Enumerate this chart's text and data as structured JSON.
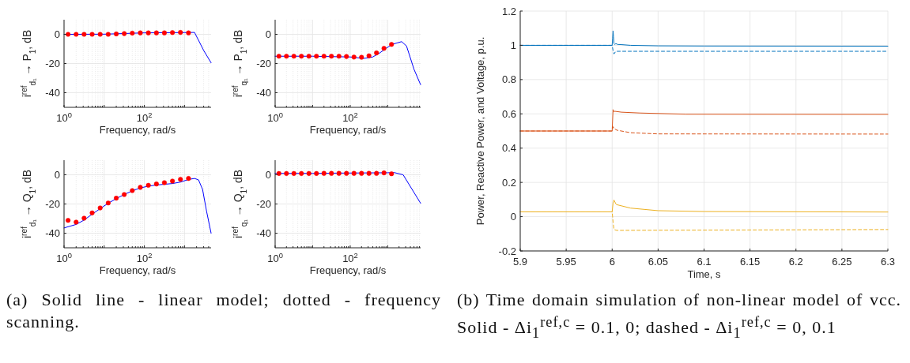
{
  "chart_data": [
    {
      "type": "line",
      "ylabel": "i$^{ref}$$_{d₁}$ → P$_{1}$, dB",
      "xlabel": "Frequency, rad/s",
      "log": "x",
      "grid": true,
      "xlim": [
        1,
        4600
      ],
      "ylim": [
        -50,
        10
      ],
      "xticks": [
        {
          "value": 1,
          "label": "10$^{0}$"
        },
        {
          "value": 10,
          "label": null
        },
        {
          "value": 100,
          "label": "10$^{2}$"
        },
        {
          "value": 1000,
          "label": null
        }
      ],
      "yticks": [
        -40,
        -20,
        0
      ],
      "annotations": [
        "(a) Solid line - linear model; dotted - frequency scanning."
      ],
      "series": [
        {
          "color": "#0000ff",
          "x": [
            1,
            10,
            100,
            1000,
            1780,
            3000,
            4600
          ],
          "values": [
            0,
            0.1,
            1,
            1.2,
            1.3,
            -11,
            -19.5
          ]
        },
        {
          "type": "scatter",
          "color": "#ff0000",
          "marker": "circle",
          "x": [
            1.26,
            2,
            3.16,
            5.01,
            7.94,
            12.6,
            20,
            31.6,
            50.1,
            79.4,
            126,
            200,
            316,
            501,
            794,
            1259
          ],
          "values": [
            0,
            0,
            0,
            0,
            0,
            0,
            0.3,
            0.5,
            0.8,
            1,
            1,
            1,
            1,
            1.2,
            1.3,
            1
          ]
        }
      ]
    },
    {
      "type": "line",
      "ylabel": "i$^{ref}$$_{q₁}$ → P$_{1}$, dB",
      "xlabel": "Frequency, rad/s",
      "log": "x",
      "grid": true,
      "xlim": [
        1,
        7500
      ],
      "ylim": [
        -50,
        10
      ],
      "xticks": [
        {
          "value": 1,
          "label": "10$^{0}$"
        },
        {
          "value": 10,
          "label": null
        },
        {
          "value": 100,
          "label": "10$^{2}$"
        },
        {
          "value": 1000,
          "label": null
        }
      ],
      "yticks": [
        -40,
        -20,
        0
      ],
      "series": [
        {
          "color": "#0000ff",
          "x": [
            1,
            10,
            100,
            230,
            400,
            630,
            1260,
            2340,
            3160,
            3980,
            5010,
            7500
          ],
          "values": [
            -15,
            -15,
            -15.5,
            -16.5,
            -15.5,
            -12.5,
            -7,
            -5,
            -8,
            -16,
            -24,
            -34.5
          ]
        },
        {
          "type": "scatter",
          "color": "#ff0000",
          "marker": "circle",
          "x": [
            1.26,
            2,
            3.16,
            5.01,
            7.94,
            12.6,
            20,
            31.6,
            50.1,
            79.4,
            126,
            200,
            316,
            501,
            794,
            1259
          ],
          "values": [
            -15,
            -15,
            -15,
            -15,
            -15,
            -15,
            -15,
            -15,
            -15,
            -15.2,
            -15.6,
            -15.7,
            -14.7,
            -12.7,
            -9.6,
            -6.9
          ]
        }
      ]
    },
    {
      "type": "line",
      "ylabel": "i$^{ref}$$_{d₁}$ → Q$_{1}$, dB",
      "xlabel": "Frequency, rad/s",
      "log": "x",
      "grid": true,
      "xlim": [
        1,
        4600
      ],
      "ylim": [
        -50,
        10
      ],
      "xticks": [
        {
          "value": 1,
          "label": "10$^{0}$"
        },
        {
          "value": 10,
          "label": null
        },
        {
          "value": 100,
          "label": "10$^{2}$"
        },
        {
          "value": 1000,
          "label": null
        }
      ],
      "yticks": [
        -40,
        -20,
        0
      ],
      "series": [
        {
          "color": "#0000ff",
          "x": [
            1,
            2,
            3.16,
            5.01,
            7.94,
            12.6,
            20,
            31.6,
            50.1,
            79.4,
            126,
            200,
            316,
            501,
            794,
            1259,
            1780,
            2240,
            2820,
            3550,
            4600
          ],
          "values": [
            -36.4,
            -34,
            -31,
            -27,
            -23.2,
            -19.5,
            -16.3,
            -13.5,
            -11,
            -9,
            -7.8,
            -7,
            -6.5,
            -6,
            -5,
            -3.2,
            -2.5,
            -3.5,
            -10,
            -25,
            -40
          ]
        },
        {
          "type": "scatter",
          "color": "#ff0000",
          "marker": "circle",
          "x": [
            1.26,
            2,
            3.16,
            5.01,
            7.94,
            12.6,
            20,
            31.6,
            50.1,
            79.4,
            126,
            200,
            316,
            501,
            794,
            1259
          ],
          "values": [
            -31.2,
            -32.4,
            -29.7,
            -26.1,
            -22.7,
            -19.3,
            -16,
            -13.5,
            -10.8,
            -8.6,
            -7.2,
            -6.3,
            -5.4,
            -4.3,
            -3.1,
            -2.5
          ]
        }
      ]
    },
    {
      "type": "line",
      "ylabel": "i$^{ref}$$_{q₁}$ → Q$_{1}$, dB",
      "xlabel": "Frequency, rad/s",
      "log": "x",
      "grid": true,
      "xlim": [
        1,
        7500
      ],
      "ylim": [
        -50,
        10
      ],
      "xticks": [
        {
          "value": 1,
          "label": "10$^{0}$"
        },
        {
          "value": 10,
          "label": null
        },
        {
          "value": 100,
          "label": "10$^{2}$"
        },
        {
          "value": 1000,
          "label": null
        }
      ],
      "yticks": [
        -40,
        -20,
        0
      ],
      "series": [
        {
          "color": "#0000ff",
          "x": [
            1,
            10,
            100,
            1000,
            1500,
            2570,
            7500
          ],
          "values": [
            1,
            1,
            1.2,
            1.4,
            1.5,
            0,
            -19.5
          ]
        },
        {
          "type": "scatter",
          "color": "#ff0000",
          "marker": "circle",
          "x": [
            1.26,
            2,
            3.16,
            5.01,
            7.94,
            12.6,
            20,
            31.6,
            50.1,
            79.4,
            126,
            200,
            316,
            501,
            794,
            1259
          ],
          "values": [
            0.9,
            0.9,
            0.9,
            0.9,
            0.9,
            0.9,
            1,
            1,
            1,
            1,
            1,
            1,
            1,
            1,
            1.3,
            0.7
          ]
        }
      ]
    },
    {
      "type": "line",
      "ylabel": "Power, Reactive Power, and Voltage, p.u.",
      "xlabel": "Time, s",
      "grid": true,
      "xlim": [
        5.9,
        6.3
      ],
      "ylim": [
        -0.2,
        1.2
      ],
      "xticks": [
        5.9,
        5.95,
        6,
        6.05,
        6.1,
        6.15,
        6.2,
        6.25,
        6.3
      ],
      "yticks": [
        -0.2,
        0,
        0.2,
        0.4,
        0.6,
        0.8,
        1,
        1.2
      ],
      "annotations": [
        "(b) Time domain simulation of non-linear model of vcc. Solid - Δi$_{1}$$^{ref,c}$ = 0.1, 0; dashed - Δi$_{1}$$^{ref,c}$ = 0, 0.1"
      ],
      "series": [
        {
          "color": "#0072bd",
          "line_style": "solid",
          "x": [
            5.9,
            6,
            6.0005,
            6.001,
            6.0015,
            6.002,
            6.003,
            6.004,
            6.006,
            6.01,
            6.02,
            6.05,
            6.1,
            6.3
          ],
          "values": [
            1,
            1,
            1.04,
            1.085,
            1.05,
            1.01,
            1.005,
            1.01,
            1.005,
            1.004,
            1,
            0.997,
            0.996,
            0.995
          ]
        },
        {
          "color": "#0072bd",
          "line_style": "dashed",
          "x": [
            5.9,
            6,
            6.001,
            6.002,
            6.004,
            6.01,
            6.3
          ],
          "values": [
            1,
            1,
            0.97,
            0.95,
            0.965,
            0.965,
            0.965
          ]
        },
        {
          "color": "#d95319",
          "line_style": "solid",
          "x": [
            5.9,
            6,
            6.001,
            6.002,
            6.003,
            6.01,
            6.03,
            6.08,
            6.3
          ],
          "values": [
            0.5,
            0.5,
            0.625,
            0.612,
            0.615,
            0.61,
            0.605,
            0.598,
            0.597
          ]
        },
        {
          "color": "#d95319",
          "line_style": "dashed",
          "x": [
            5.9,
            6,
            6.001,
            6.002,
            6.005,
            6.02,
            6.05,
            6.3
          ],
          "values": [
            0.5,
            0.5,
            0.525,
            0.515,
            0.505,
            0.49,
            0.483,
            0.482
          ]
        },
        {
          "color": "#edb120",
          "line_style": "solid",
          "x": [
            5.9,
            6,
            6.001,
            6.002,
            6.004,
            6.005,
            6.02,
            6.05,
            6.1,
            6.3
          ],
          "values": [
            0.028,
            0.028,
            0.08,
            0.097,
            0.075,
            0.07,
            0.05,
            0.035,
            0.03,
            0.027
          ]
        },
        {
          "color": "#edb120",
          "line_style": "dashed",
          "x": [
            5.9,
            6,
            6.001,
            6.002,
            6.005,
            6.3
          ],
          "values": [
            0.028,
            0.028,
            -0.03,
            -0.075,
            -0.08,
            -0.075
          ]
        }
      ]
    }
  ]
}
